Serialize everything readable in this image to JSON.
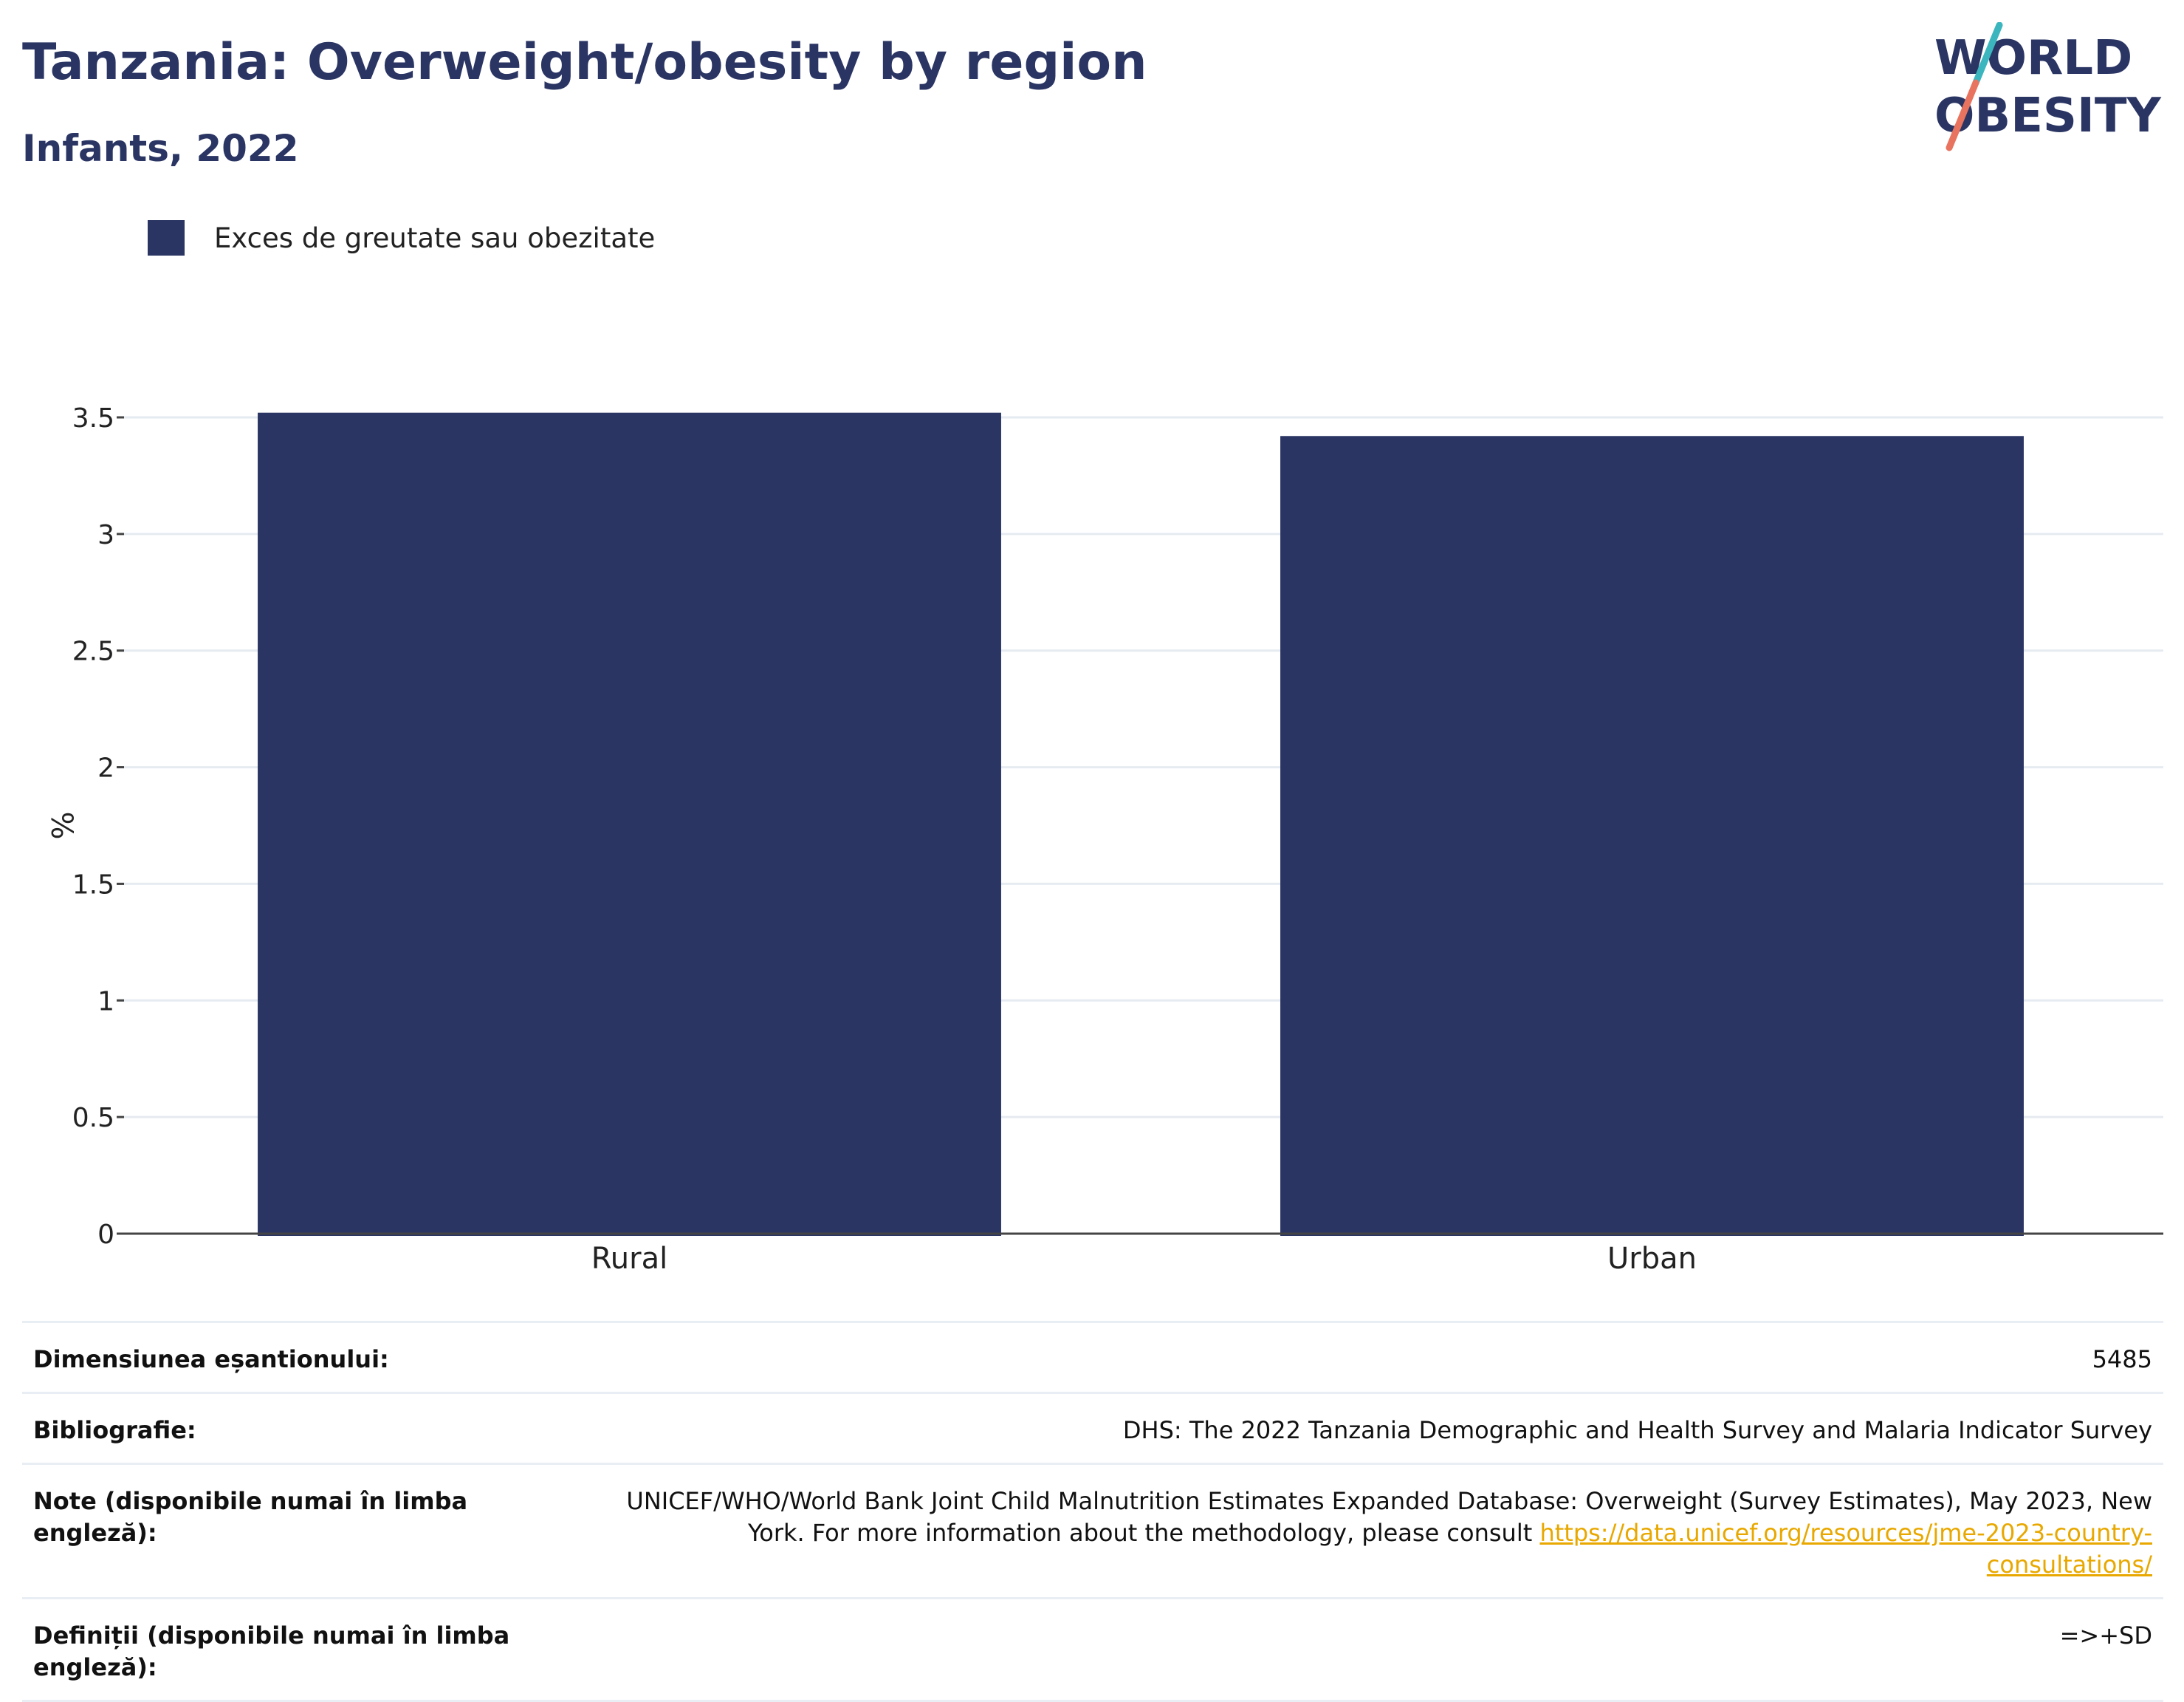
{
  "header": {
    "title": "Tanzania: Overweight/obesity by region",
    "subtitle": "Infants, 2022"
  },
  "logo": {
    "line1": "WORLD",
    "line2": "OBESITY",
    "colors": {
      "text": "#2a3563",
      "slash_top": "#3bb6be",
      "slash_bottom": "#e8735e"
    }
  },
  "legend": {
    "items": [
      {
        "label": "Exces de greutate sau obezitate",
        "color": "#2a3563"
      }
    ]
  },
  "chart_data": {
    "type": "bar",
    "categories": [
      "Rural",
      "Urban"
    ],
    "series": [
      {
        "name": "Exces de greutate sau obezitate",
        "values": [
          3.52,
          3.42
        ],
        "color": "#2a3563"
      }
    ],
    "ylabel": "%",
    "ylim": [
      0,
      3.5
    ],
    "yticks": [
      "0",
      "0.5",
      "1",
      "1.5",
      "2",
      "2.5",
      "3",
      "3.5"
    ],
    "grid": true
  },
  "info": {
    "rows": [
      {
        "label": "Dimensiunea eșantionului:",
        "value": "5485"
      },
      {
        "label": "Bibliografie:",
        "value": "DHS: The 2022 Tanzania Demographic and Health Survey and Malaria Indicator Survey"
      },
      {
        "label": "Note (disponibile numai în limba engleză):",
        "value": "UNICEF/WHO/World Bank Joint Child Malnutrition Estimates Expanded Database: Overweight (Survey Estimates), May 2023, New York. For more information about the methodology, please consult ",
        "link": "https://data.unicef.org/resources/jme-2023-country-consultations/"
      },
      {
        "label": "Definiții (disponibile numai în limba engleză):",
        "value": "=>+SD"
      }
    ]
  }
}
